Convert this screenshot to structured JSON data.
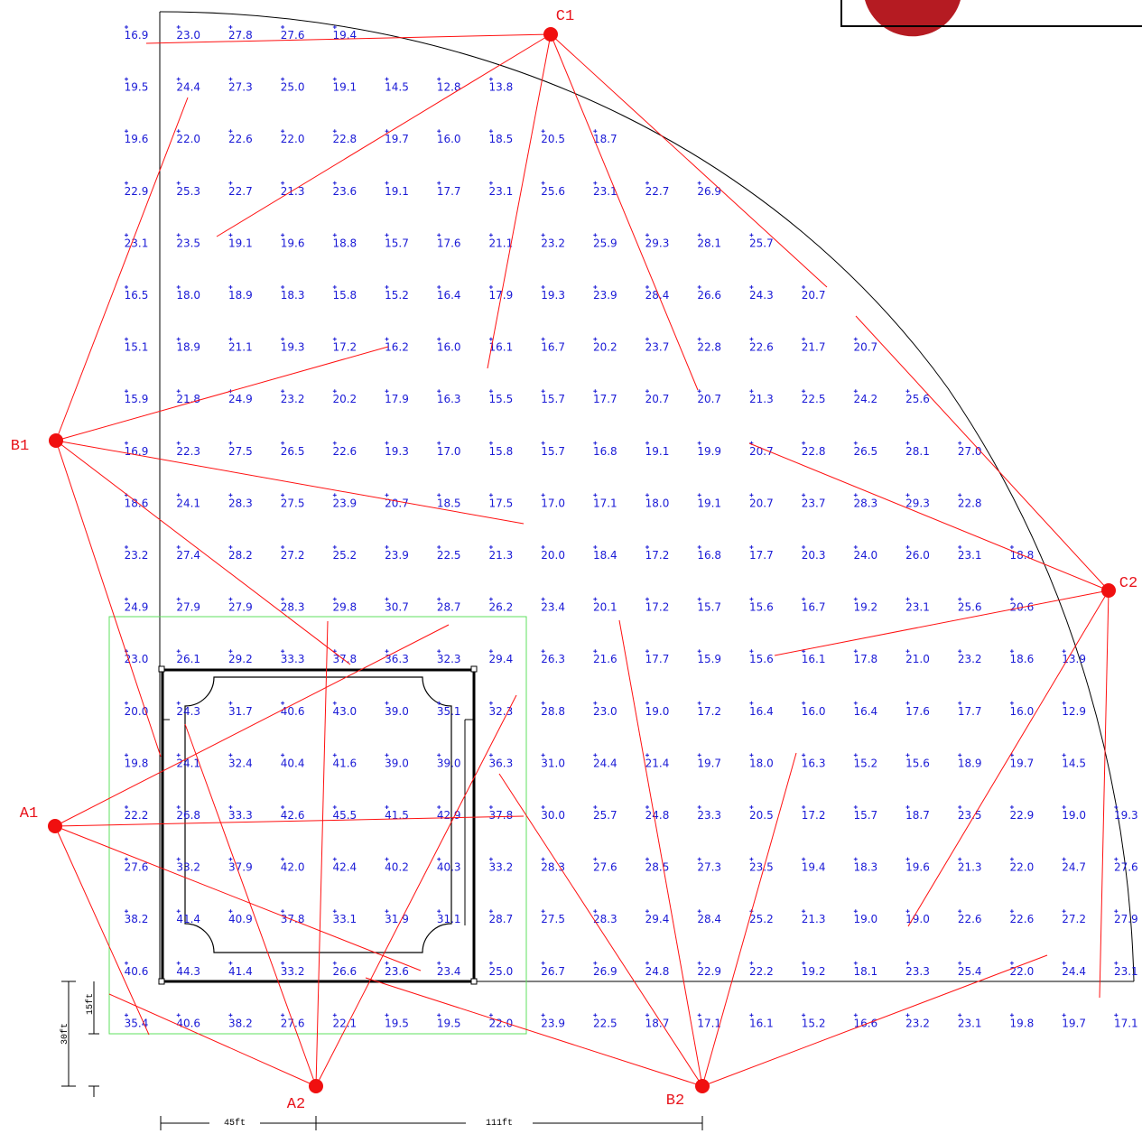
{
  "poles": [
    {
      "id": "C1",
      "label": "C1"
    },
    {
      "id": "B1",
      "label": "B1"
    },
    {
      "id": "A1",
      "label": "A1"
    },
    {
      "id": "A2",
      "label": "A2"
    },
    {
      "id": "B2",
      "label": "B2"
    },
    {
      "id": "C2",
      "label": "C2"
    }
  ],
  "dimensions": {
    "width_left": "45ft",
    "width_right": "111ft",
    "height_inner": "15ft",
    "height_outer": "30ft"
  },
  "grid_rows": [
    [
      "16.9",
      "23.0",
      "27.8",
      "27.6",
      "19.4"
    ],
    [
      "19.5",
      "24.4",
      "27.3",
      "25.0",
      "19.1",
      "14.5",
      "12.8",
      "13.8"
    ],
    [
      "19.6",
      "22.0",
      "22.6",
      "22.0",
      "22.8",
      "19.7",
      "16.0",
      "18.5",
      "20.5",
      "18.7"
    ],
    [
      "22.9",
      "25.3",
      "22.7",
      "21.3",
      "23.6",
      "19.1",
      "17.7",
      "23.1",
      "25.6",
      "23.1",
      "22.7",
      "26.9"
    ],
    [
      "23.1",
      "23.5",
      "19.1",
      "19.6",
      "18.8",
      "15.7",
      "17.6",
      "21.1",
      "23.2",
      "25.9",
      "29.3",
      "28.1",
      "25.7"
    ],
    [
      "16.5",
      "18.0",
      "18.9",
      "18.3",
      "15.8",
      "15.2",
      "16.4",
      "17.9",
      "19.3",
      "23.9",
      "28.4",
      "26.6",
      "24.3",
      "20.7"
    ],
    [
      "15.1",
      "18.9",
      "21.1",
      "19.3",
      "17.2",
      "16.2",
      "16.0",
      "16.1",
      "16.7",
      "20.2",
      "23.7",
      "22.8",
      "22.6",
      "21.7",
      "20.7"
    ],
    [
      "15.9",
      "21.8",
      "24.9",
      "23.2",
      "20.2",
      "17.9",
      "16.3",
      "15.5",
      "15.7",
      "17.7",
      "20.7",
      "20.7",
      "21.3",
      "22.5",
      "24.2",
      "25.6"
    ],
    [
      "16.9",
      "22.3",
      "27.5",
      "26.5",
      "22.6",
      "19.3",
      "17.0",
      "15.8",
      "15.7",
      "16.8",
      "19.1",
      "19.9",
      "20.7",
      "22.8",
      "26.5",
      "28.1",
      "27.0"
    ],
    [
      "18.6",
      "24.1",
      "28.3",
      "27.5",
      "23.9",
      "20.7",
      "18.5",
      "17.5",
      "17.0",
      "17.1",
      "18.0",
      "19.1",
      "20.7",
      "23.7",
      "28.3",
      "29.3",
      "22.8"
    ],
    [
      "23.2",
      "27.4",
      "28.2",
      "27.2",
      "25.2",
      "23.9",
      "22.5",
      "21.3",
      "20.0",
      "18.4",
      "17.2",
      "16.8",
      "17.7",
      "20.3",
      "24.0",
      "26.0",
      "23.1",
      "18.8"
    ],
    [
      "24.9",
      "27.9",
      "27.9",
      "28.3",
      "29.8",
      "30.7",
      "28.7",
      "26.2",
      "23.4",
      "20.1",
      "17.2",
      "15.7",
      "15.6",
      "16.7",
      "19.2",
      "23.1",
      "25.6",
      "20.6"
    ],
    [
      "23.0",
      "26.1",
      "29.2",
      "33.3",
      "37.8",
      "36.3",
      "32.3",
      "29.4",
      "26.3",
      "21.6",
      "17.7",
      "15.9",
      "15.6",
      "16.1",
      "17.8",
      "21.0",
      "23.2",
      "18.6",
      "13.9"
    ],
    [
      "20.0",
      "24.3",
      "31.7",
      "40.6",
      "43.0",
      "39.0",
      "35.1",
      "32.3",
      "28.8",
      "23.0",
      "19.0",
      "17.2",
      "16.4",
      "16.0",
      "16.4",
      "17.6",
      "17.7",
      "16.0",
      "12.9"
    ],
    [
      "19.8",
      "24.1",
      "32.4",
      "40.4",
      "41.6",
      "39.0",
      "39.0",
      "36.3",
      "31.0",
      "24.4",
      "21.4",
      "19.7",
      "18.0",
      "16.3",
      "15.2",
      "15.6",
      "18.9",
      "19.7",
      "14.5"
    ],
    [
      "22.2",
      "26.8",
      "33.3",
      "42.6",
      "45.5",
      "41.5",
      "42.9",
      "37.8",
      "30.0",
      "25.7",
      "24.8",
      "23.3",
      "20.5",
      "17.2",
      "15.7",
      "18.7",
      "23.5",
      "22.9",
      "19.0",
      "19.3"
    ],
    [
      "27.6",
      "33.2",
      "37.9",
      "42.0",
      "42.4",
      "40.2",
      "40.3",
      "33.2",
      "28.3",
      "27.6",
      "28.5",
      "27.3",
      "23.5",
      "19.4",
      "18.3",
      "19.6",
      "21.3",
      "22.0",
      "24.7",
      "27.6"
    ],
    [
      "38.2",
      "41.4",
      "40.9",
      "37.8",
      "33.1",
      "31.9",
      "31.1",
      "28.7",
      "27.5",
      "28.3",
      "29.4",
      "28.4",
      "25.2",
      "21.3",
      "19.0",
      "19.0",
      "22.6",
      "22.6",
      "27.2",
      "27.9"
    ],
    [
      "40.6",
      "44.3",
      "41.4",
      "33.2",
      "26.6",
      "23.6",
      "23.4",
      "25.0",
      "26.7",
      "26.9",
      "24.8",
      "22.9",
      "22.2",
      "19.2",
      "18.1",
      "23.3",
      "25.4",
      "22.0",
      "24.4",
      "23.1"
    ],
    [
      "35.4",
      "40.6",
      "38.2",
      "27.6",
      "22.1",
      "19.5",
      "19.5",
      "22.0",
      "23.9",
      "22.5",
      "18.7",
      "17.1",
      "16.1",
      "15.2",
      "16.6",
      "23.2",
      "23.1",
      "19.8",
      "19.7",
      "17.1"
    ]
  ]
}
